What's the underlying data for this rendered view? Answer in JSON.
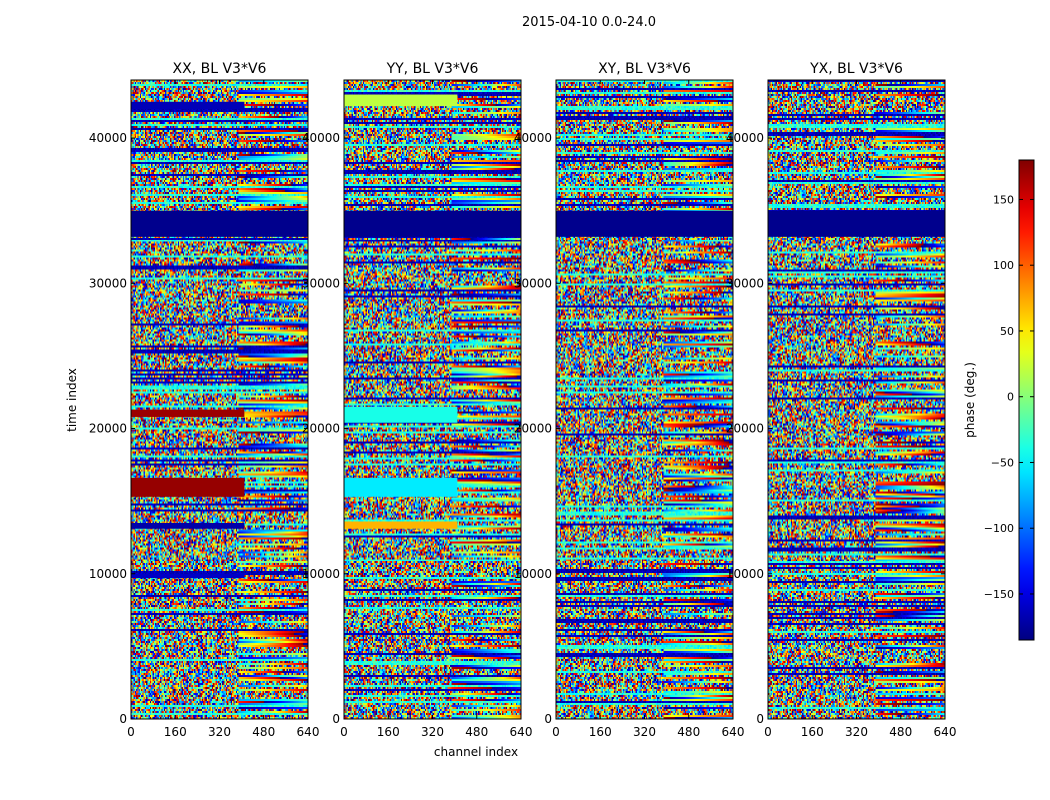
{
  "chart_data": {
    "type": "heatmap",
    "suptitle": "2015-04-10 0.0-24.0",
    "xlabel": "channel index",
    "ylabel": "time index",
    "xlim": [
      0,
      640
    ],
    "ylim": [
      0,
      44000
    ],
    "x_ticks": [
      0,
      160,
      320,
      480,
      640
    ],
    "y_ticks": [
      0,
      10000,
      20000,
      30000,
      40000
    ],
    "panels": [
      {
        "title": "XX, BL V3*V6",
        "blocks": [
          {
            "t0": 33200,
            "t1": 35000,
            "c0": 0,
            "c1": 640,
            "phase": -180
          },
          {
            "t0": 42000,
            "t1": 42500,
            "c0": 0,
            "c1": 410,
            "phase": -165
          },
          {
            "t0": 20800,
            "t1": 21300,
            "c0": 0,
            "c1": 410,
            "phase": 170
          },
          {
            "t0": 15300,
            "t1": 16600,
            "c0": 0,
            "c1": 410,
            "phase": 172
          },
          {
            "t0": 13100,
            "t1": 13500,
            "c0": 0,
            "c1": 410,
            "phase": -170
          },
          {
            "t0": 9700,
            "t1": 10000,
            "c0": 0,
            "c1": 410,
            "phase": -160
          }
        ]
      },
      {
        "title": "YY, BL V3*V6",
        "blocks": [
          {
            "t0": 33200,
            "t1": 35000,
            "c0": 0,
            "c1": 640,
            "phase": -180
          },
          {
            "t0": 42200,
            "t1": 43000,
            "c0": 0,
            "c1": 410,
            "phase": 20
          },
          {
            "t0": 20400,
            "t1": 21500,
            "c0": 0,
            "c1": 410,
            "phase": -40
          },
          {
            "t0": 15300,
            "t1": 16600,
            "c0": 0,
            "c1": 410,
            "phase": -55
          },
          {
            "t0": 13100,
            "t1": 13600,
            "c0": 0,
            "c1": 410,
            "phase": 70
          }
        ]
      },
      {
        "title": "XY, BL V3*V6",
        "blocks": [
          {
            "t0": 33200,
            "t1": 35000,
            "c0": 0,
            "c1": 640,
            "phase": -180
          }
        ]
      },
      {
        "title": "YX, BL V3*V6",
        "blocks": [
          {
            "t0": 33200,
            "t1": 35000,
            "c0": 0,
            "c1": 640,
            "phase": -180
          }
        ]
      }
    ],
    "colorbar": {
      "label": "phase (deg.)",
      "range": [
        -185,
        180
      ],
      "ticks": [
        150,
        100,
        50,
        0,
        -50,
        -100,
        -150
      ],
      "tick_labels": [
        "150",
        "100",
        "50",
        "0",
        "−50",
        "−100",
        "−150"
      ],
      "colormap": "jet"
    }
  }
}
